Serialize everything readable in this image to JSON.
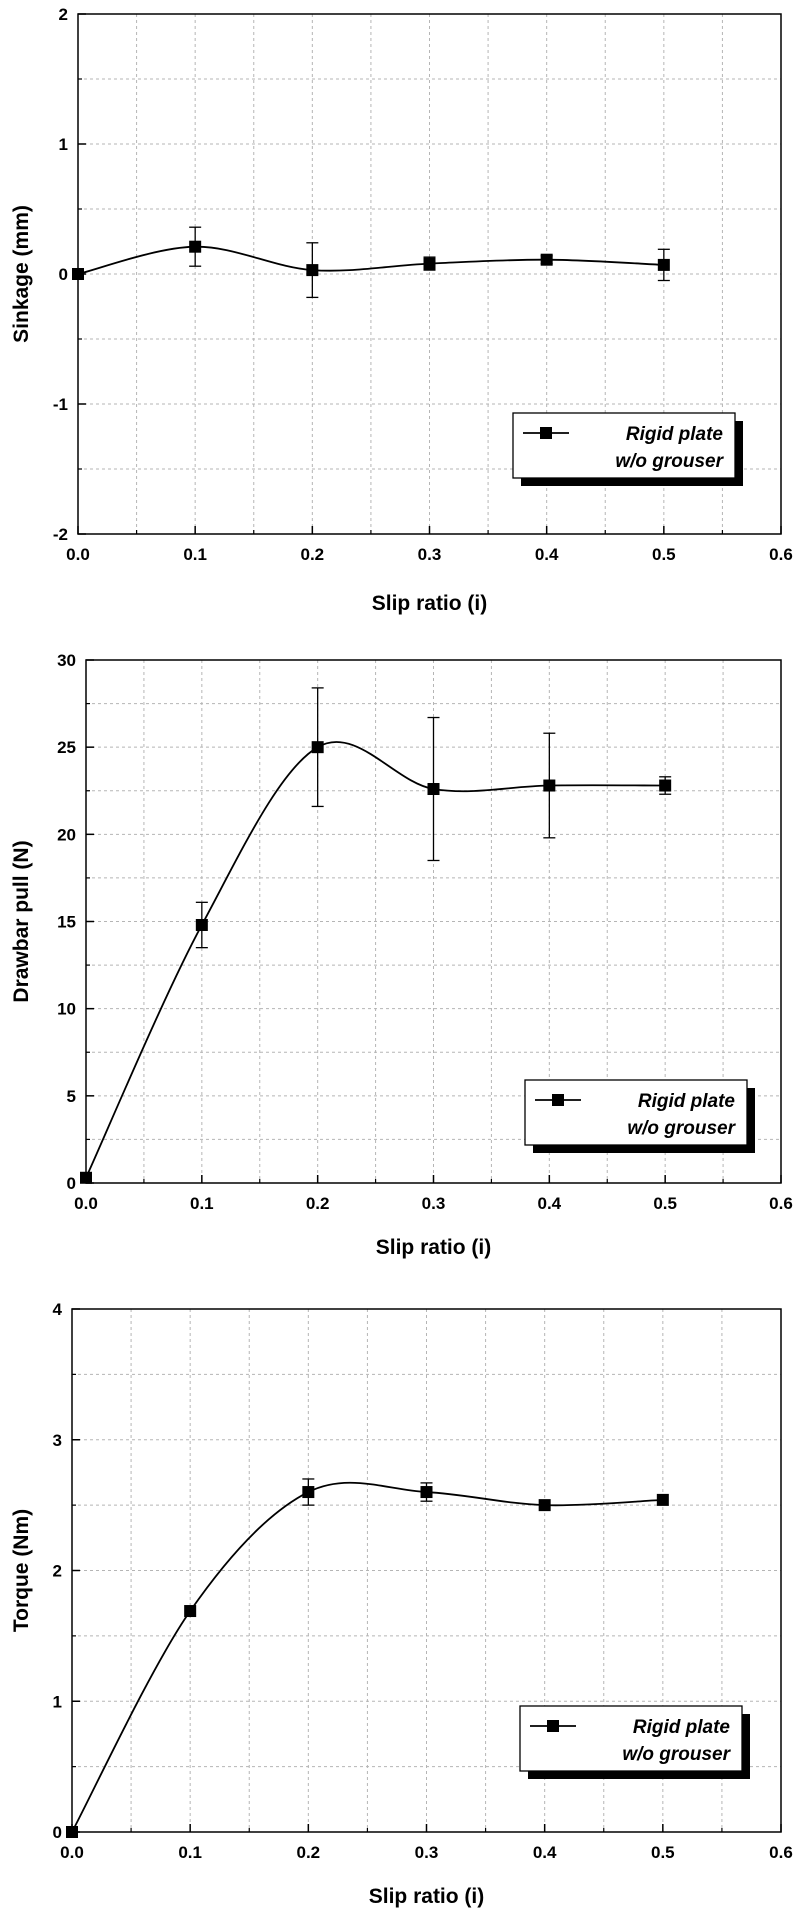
{
  "chart_data": [
    {
      "type": "line",
      "xlabel": "Slip ratio (i)",
      "ylabel": "Sinkage (mm)",
      "xlim": [
        0.0,
        0.6
      ],
      "ylim": [
        -2,
        2
      ],
      "xticks": [
        "0.0",
        "0.1",
        "0.2",
        "0.3",
        "0.4",
        "0.5",
        "0.6"
      ],
      "yticks": [
        "-2",
        "-1",
        "0",
        "1",
        "2"
      ],
      "grid": true,
      "legend_position": "bottom-right",
      "series": [
        {
          "name": "Rigid plate w/o grouser",
          "legend_lines": [
            "Rigid plate",
            "w/o grouser"
          ],
          "x": [
            0.0,
            0.1,
            0.2,
            0.3,
            0.4,
            0.5
          ],
          "y": [
            0.0,
            0.21,
            0.03,
            0.08,
            0.11,
            0.07
          ],
          "error": [
            0.0,
            0.15,
            0.21,
            0.05,
            0.03,
            0.12
          ],
          "color": "#000000"
        }
      ]
    },
    {
      "type": "line",
      "xlabel": "Slip ratio (i)",
      "ylabel": "Drawbar pull (N)",
      "xlim": [
        0.0,
        0.6
      ],
      "ylim": [
        0,
        30
      ],
      "xticks": [
        "0.0",
        "0.1",
        "0.2",
        "0.3",
        "0.4",
        "0.5",
        "0.6"
      ],
      "yticks": [
        "0",
        "5",
        "10",
        "15",
        "20",
        "25",
        "30"
      ],
      "grid": true,
      "legend_position": "bottom-right",
      "series": [
        {
          "name": "Rigid plate w/o grouser",
          "legend_lines": [
            "Rigid plate",
            "w/o grouser"
          ],
          "x": [
            0.0,
            0.1,
            0.2,
            0.3,
            0.4,
            0.5
          ],
          "y": [
            0.3,
            14.8,
            25.0,
            22.6,
            22.8,
            22.8
          ],
          "error": [
            0.0,
            1.3,
            3.4,
            4.1,
            3.0,
            0.5
          ],
          "color": "#000000"
        }
      ]
    },
    {
      "type": "line",
      "xlabel": "Slip ratio (i)",
      "ylabel": "Torque (Nm)",
      "xlim": [
        0.0,
        0.6
      ],
      "ylim": [
        0,
        4
      ],
      "xticks": [
        "0.0",
        "0.1",
        "0.2",
        "0.3",
        "0.4",
        "0.5",
        "0.6"
      ],
      "yticks": [
        "0",
        "1",
        "2",
        "3",
        "4"
      ],
      "grid": true,
      "legend_position": "bottom-right",
      "series": [
        {
          "name": "Rigid plate w/o grouser",
          "legend_lines": [
            "Rigid plate",
            "w/o grouser"
          ],
          "x": [
            0.0,
            0.1,
            0.2,
            0.3,
            0.4,
            0.5
          ],
          "y": [
            0.0,
            1.69,
            2.6,
            2.6,
            2.5,
            2.54
          ],
          "error": [
            0.0,
            0.0,
            0.1,
            0.07,
            0.0,
            0.0
          ],
          "color": "#000000"
        }
      ]
    }
  ]
}
